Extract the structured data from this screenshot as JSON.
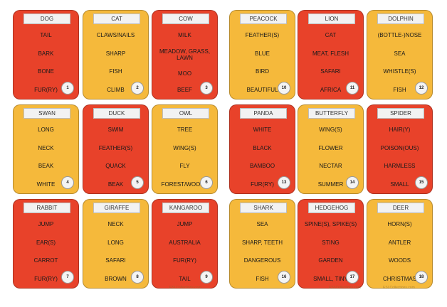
{
  "colors": {
    "red": "#e8422a",
    "yellow": "#f5b93b"
  },
  "cards": [
    {
      "title": "DOG",
      "color": "red",
      "words": [
        "TAIL",
        "BARK",
        "BONE",
        "FUR(RY)"
      ],
      "number": "1"
    },
    {
      "title": "CAT",
      "color": "yellow",
      "words": [
        "CLAWS/NAILS",
        "SHARP",
        "FISH",
        "CLIMB"
      ],
      "number": "2"
    },
    {
      "title": "COW",
      "color": "red",
      "words": [
        "MILK",
        "MEADOW, GRASS, LAWN",
        "MOO",
        "BEEF"
      ],
      "number": "3"
    },
    {
      "title": "PEACOCK",
      "color": "yellow",
      "words": [
        "FEATHER(S)",
        "BLUE",
        "BIRD",
        "BEAUTIFUL"
      ],
      "number": "10"
    },
    {
      "title": "LION",
      "color": "red",
      "words": [
        "CAT",
        "MEAT, FLESH",
        "SAFARI",
        "AFRICA"
      ],
      "number": "11"
    },
    {
      "title": "DOLPHIN",
      "color": "yellow",
      "words": [
        "(BOTTLE-)NOSE",
        "SEA",
        "WHISTLE(S)",
        "FISH"
      ],
      "number": "12"
    },
    {
      "title": "SWAN",
      "color": "yellow",
      "words": [
        "LONG",
        "NECK",
        "BEAK",
        "WHITE"
      ],
      "number": "4"
    },
    {
      "title": "DUCK",
      "color": "red",
      "words": [
        "SWIM",
        "FEATHER(S)",
        "QUACK",
        "BEAK"
      ],
      "number": "5"
    },
    {
      "title": "OWL",
      "color": "yellow",
      "words": [
        "TREE",
        "WING(S)",
        "FLY",
        "FOREST/WOODS"
      ],
      "number": "6"
    },
    {
      "title": "PANDA",
      "color": "red",
      "words": [
        "WHITE",
        "BLACK",
        "BAMBOO",
        "FUR(RY)"
      ],
      "number": "13"
    },
    {
      "title": "BUTTERFLY",
      "color": "yellow",
      "words": [
        "WING(S)",
        "FLOWER",
        "NECTAR",
        "SUMMER"
      ],
      "number": "14"
    },
    {
      "title": "SPIDER",
      "color": "red",
      "words": [
        "HAIR(Y)",
        "POISON(OUS)",
        "HARMLESS",
        "SMALL"
      ],
      "number": "15"
    },
    {
      "title": "RABBIT",
      "color": "red",
      "words": [
        "JUMP",
        "EAR(S)",
        "CARROT",
        "FUR(RY)"
      ],
      "number": "7"
    },
    {
      "title": "GIRAFFE",
      "color": "yellow",
      "words": [
        "NECK",
        "LONG",
        "SAFARI",
        "BROWN"
      ],
      "number": "8"
    },
    {
      "title": "KANGAROO",
      "color": "red",
      "words": [
        "JUMP",
        "AUSTRALIA",
        "FUR(RY)",
        "TAIL"
      ],
      "number": "9"
    },
    {
      "title": "SHARK",
      "color": "yellow",
      "words": [
        "SEA",
        "SHARP, TEETH",
        "DANGEROUS",
        "FISH"
      ],
      "number": "16"
    },
    {
      "title": "HEDGEHOG",
      "color": "red",
      "words": [
        "SPINE(S), SPIKE(S)",
        "STING",
        "GARDEN",
        "SMALL, TINY"
      ],
      "number": "17"
    },
    {
      "title": "DEER",
      "color": "yellow",
      "words": [
        "HORN(S)",
        "ANTLER",
        "WOODS",
        "CHRISTMAS"
      ],
      "number": "18"
    }
  ],
  "watermarks": [
    "ESLCollections.com",
    "ESLCollections.com",
    "ESLCollections.com"
  ]
}
